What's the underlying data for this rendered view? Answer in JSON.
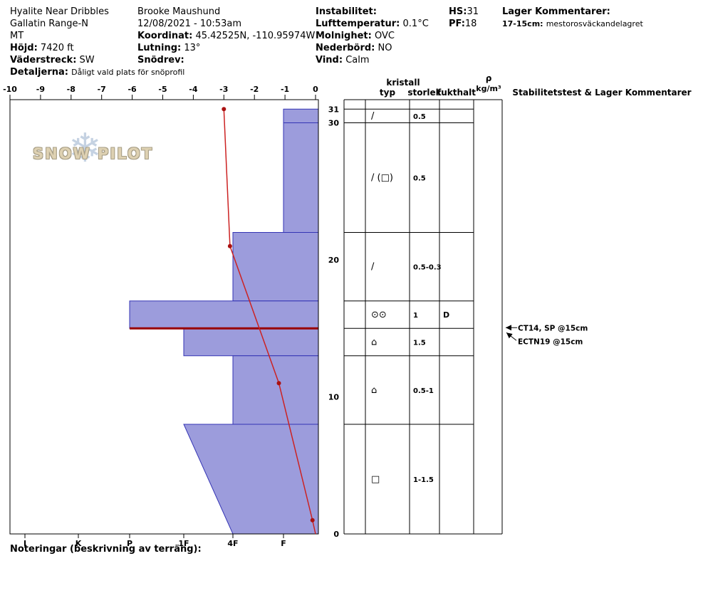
{
  "header": {
    "site": {
      "name": "Hyalite Near Dribbles",
      "range": "Gallatin Range-N",
      "state": "MT",
      "elevation_label": "Höjd:",
      "elevation": "7420 ft",
      "aspect_label": "Väderstreck:",
      "aspect": "SW",
      "details_label": "Detaljerna:",
      "details": "Dåligt vald plats för snöprofil"
    },
    "observer": {
      "name": "Brooke Maushund",
      "datetime": "12/08/2021 - 10:53am",
      "coords_label": "Koordinat:",
      "coords": "45.42525N, -110.95974W",
      "slope_label": "Lutning:",
      "slope": "13°",
      "drift_label": "Snödrev:",
      "drift": ""
    },
    "weather": {
      "instability_label": "Instabilitet:",
      "instability": "",
      "airtemp_label": "Lufttemperatur:",
      "airtemp": "0.1°C",
      "sky_label": "Molnighet:",
      "sky": "OVC",
      "precip_label": "Nederbörd:",
      "precip": "NO",
      "wind_label": "Vind:",
      "wind": "Calm"
    },
    "totals": {
      "hs_label": "HS:",
      "hs": "31",
      "pf_label": "PF:",
      "pf": "18"
    },
    "layer_comments": {
      "title": "Lager Kommentarer:",
      "entry_depth": "17-15cm:",
      "entry_text": "mestorosväckandelagret"
    }
  },
  "logo": {
    "text": "SNOW PILOT",
    "flake_glyph": "❄"
  },
  "footer": {
    "label": "Noteringar (beskrivning av terräng):"
  },
  "chart_data": {
    "type": "snow-profile",
    "title": "",
    "temp_axis": {
      "ticks": [
        -10,
        -9,
        -8,
        -7,
        -6,
        -5,
        -4,
        -3,
        -2,
        -1,
        0
      ],
      "min": -10,
      "max": 0,
      "units": "°C"
    },
    "hardness_axis": {
      "categories": [
        "I",
        "K",
        "P",
        "1F",
        "4F",
        "F"
      ]
    },
    "depth_axis": {
      "ticks": [
        31,
        30,
        20,
        10,
        0
      ],
      "max_cm": 31,
      "units": "cm"
    },
    "layers": [
      {
        "top_cm": 31,
        "bottom_cm": 30,
        "hardness": "F",
        "grain_symbol": "/",
        "grain_size_mm": "0.5",
        "moisture": ""
      },
      {
        "top_cm": 30,
        "bottom_cm": 22,
        "hardness": "F",
        "grain_symbol": "/ (□)",
        "grain_size_mm": "0.5",
        "moisture": ""
      },
      {
        "top_cm": 22,
        "bottom_cm": 17,
        "hardness": "4F",
        "grain_symbol": "/",
        "grain_size_mm": "0.5-0.3",
        "moisture": ""
      },
      {
        "top_cm": 17,
        "bottom_cm": 15,
        "hardness": "P",
        "grain_symbol": "⊙⊙",
        "grain_size_mm": "1",
        "moisture": "D",
        "flag": true
      },
      {
        "top_cm": 15,
        "bottom_cm": 13,
        "hardness": "1F",
        "grain_symbol": "⌂",
        "grain_size_mm": "1.5",
        "moisture": ""
      },
      {
        "top_cm": 13,
        "bottom_cm": 8,
        "hardness": "4F",
        "grain_symbol": "⌂",
        "grain_size_mm": "0.5-1",
        "moisture": ""
      },
      {
        "top_cm": 8,
        "bottom_cm": 0,
        "hardness": "1F",
        "hardness_bottom": "4F",
        "grain_symbol": "□",
        "grain_size_mm": "1-1.5",
        "moisture": ""
      }
    ],
    "weak_layer_depth_cm": 15,
    "temperature_profile": [
      {
        "temp_c": -3.0,
        "depth_cm": 31
      },
      {
        "temp_c": -2.8,
        "depth_cm": 21
      },
      {
        "temp_c": -1.2,
        "depth_cm": 11
      },
      {
        "temp_c": -0.1,
        "depth_cm": 1
      },
      {
        "temp_c": 0,
        "depth_cm": 0,
        "marker": false
      }
    ],
    "table_headers": {
      "kristall": "kristall",
      "typ": "typ",
      "storlek": "storlek",
      "fukthalt": "fukthalt",
      "rho": "ρ",
      "rho_units": "kg/m³",
      "comments": "Stabilitetstest & Lager Kommentarer"
    },
    "stability_tests": [
      {
        "label": "CT14, SP @15cm",
        "depth_cm": 15
      },
      {
        "label": "ECTN19 @15cm",
        "depth_cm": 15
      }
    ],
    "colors": {
      "layer_fill": "#9c9cdc",
      "layer_stroke": "#3434b4",
      "temp_line": "#cc2222",
      "temp_marker": "#aa1111",
      "weak_layer_line": "#990000",
      "axis": "#000000"
    },
    "legend_position": "none",
    "grid": false
  }
}
